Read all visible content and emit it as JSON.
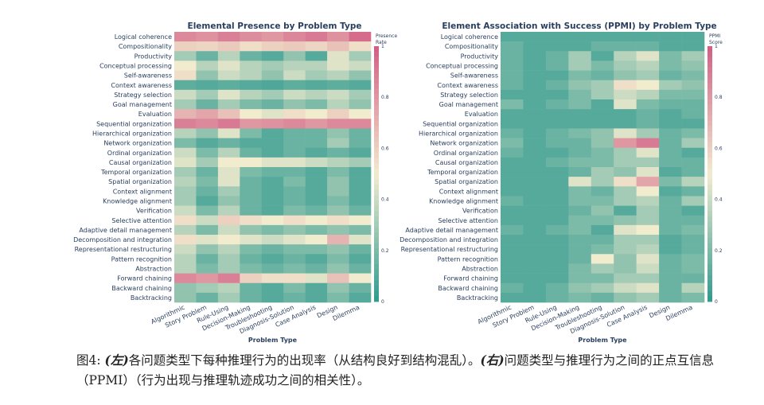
{
  "chart_data": [
    {
      "type": "heatmap",
      "title": "Elemental Presence by Problem Type",
      "xlabel": "Problem Type",
      "ylabel": "",
      "colorbar": {
        "label_line1": "Presence",
        "label_line2": "Rate",
        "range": [
          0,
          1
        ],
        "ticks": [
          "0",
          "0.2",
          "0.4",
          "0.6",
          "0.8",
          "1"
        ]
      },
      "colors": {
        "low": "#2f9a8f",
        "mid": "#f2eccf",
        "high": "#d25e84"
      },
      "x": [
        "Algorithmic",
        "Story Problem",
        "Rule-Using",
        "Decision-Making",
        "Troubleshooting",
        "Diagnosis-Solution",
        "Case Analysis",
        "Design",
        "Dilemma"
      ],
      "y": [
        "Logical coherence",
        "Compositionality",
        "Productivity",
        "Conceptual processing",
        "Self-awareness",
        "Context awareness",
        "Strategy selection",
        "Goal management",
        "Evaluation",
        "Sequential organization",
        "Hierarchical organization",
        "Network organization",
        "Ordinal organization",
        "Causal organization",
        "Temporal organization",
        "Spatial organization",
        "Context alignment",
        "Knowledge alignment",
        "Verification",
        "Selective attention",
        "Adaptive detail management",
        "Decomposition and integration",
        "Representational restructuring",
        "Pattern recognition",
        "Abstraction",
        "Forward chaining",
        "Backward chaining",
        "Backtracking"
      ],
      "values": [
        [
          0.85,
          0.82,
          0.88,
          0.83,
          0.8,
          0.86,
          0.9,
          0.82,
          0.95
        ],
        [
          0.6,
          0.58,
          0.62,
          0.55,
          0.6,
          0.62,
          0.58,
          0.65,
          0.55
        ],
        [
          0.3,
          0.15,
          0.35,
          0.15,
          0.1,
          0.25,
          0.1,
          0.45,
          0.3
        ],
        [
          0.5,
          0.35,
          0.45,
          0.35,
          0.3,
          0.35,
          0.35,
          0.45,
          0.4
        ],
        [
          0.55,
          0.25,
          0.4,
          0.35,
          0.25,
          0.4,
          0.3,
          0.35,
          0.25
        ],
        [
          0.12,
          0.1,
          0.12,
          0.1,
          0.08,
          0.12,
          0.1,
          0.12,
          0.1
        ],
        [
          0.4,
          0.3,
          0.45,
          0.35,
          0.3,
          0.4,
          0.35,
          0.4,
          0.3
        ],
        [
          0.3,
          0.15,
          0.3,
          0.2,
          0.15,
          0.25,
          0.2,
          0.35,
          0.25
        ],
        [
          0.7,
          0.75,
          0.65,
          0.5,
          0.45,
          0.55,
          0.5,
          0.6,
          0.5
        ],
        [
          0.88,
          0.85,
          0.9,
          0.8,
          0.82,
          0.85,
          0.8,
          0.85,
          0.85
        ],
        [
          0.35,
          0.25,
          0.45,
          0.2,
          0.1,
          0.15,
          0.15,
          0.25,
          0.15
        ],
        [
          0.2,
          0.1,
          0.15,
          0.1,
          0.1,
          0.15,
          0.15,
          0.3,
          0.15
        ],
        [
          0.4,
          0.2,
          0.35,
          0.15,
          0.1,
          0.15,
          0.1,
          0.15,
          0.1
        ],
        [
          0.45,
          0.3,
          0.5,
          0.5,
          0.45,
          0.45,
          0.4,
          0.35,
          0.3
        ],
        [
          0.3,
          0.15,
          0.45,
          0.2,
          0.15,
          0.15,
          0.1,
          0.2,
          0.1
        ],
        [
          0.35,
          0.2,
          0.45,
          0.15,
          0.1,
          0.2,
          0.1,
          0.25,
          0.1
        ],
        [
          0.3,
          0.15,
          0.3,
          0.15,
          0.1,
          0.15,
          0.1,
          0.25,
          0.1
        ],
        [
          0.3,
          0.1,
          0.25,
          0.15,
          0.1,
          0.15,
          0.1,
          0.2,
          0.1
        ],
        [
          0.4,
          0.2,
          0.35,
          0.15,
          0.1,
          0.2,
          0.15,
          0.25,
          0.15
        ],
        [
          0.55,
          0.4,
          0.6,
          0.55,
          0.5,
          0.55,
          0.5,
          0.55,
          0.5
        ],
        [
          0.35,
          0.2,
          0.4,
          0.25,
          0.2,
          0.25,
          0.2,
          0.25,
          0.2
        ],
        [
          0.55,
          0.45,
          0.5,
          0.45,
          0.4,
          0.45,
          0.5,
          0.7,
          0.45
        ],
        [
          0.4,
          0.25,
          0.35,
          0.2,
          0.15,
          0.2,
          0.2,
          0.25,
          0.15
        ],
        [
          0.35,
          0.15,
          0.3,
          0.15,
          0.1,
          0.15,
          0.1,
          0.2,
          0.1
        ],
        [
          0.35,
          0.2,
          0.3,
          0.2,
          0.15,
          0.2,
          0.15,
          0.25,
          0.15
        ],
        [
          0.85,
          0.8,
          0.88,
          0.6,
          0.55,
          0.55,
          0.45,
          0.65,
          0.5
        ],
        [
          0.25,
          0.3,
          0.35,
          0.15,
          0.1,
          0.2,
          0.1,
          0.25,
          0.15
        ],
        [
          0.25,
          0.15,
          0.3,
          0.15,
          0.1,
          0.15,
          0.1,
          0.2,
          0.1
        ]
      ]
    },
    {
      "type": "heatmap",
      "title": "Element Association with Success (PPMI) by Problem Type",
      "xlabel": "Problem Type",
      "ylabel": "",
      "colorbar": {
        "label_line1": "PPMI",
        "label_line2": "Score",
        "range": [
          0,
          1
        ],
        "ticks": [
          "0",
          "0.2",
          "0.4",
          "0.6",
          "0.8",
          "1"
        ]
      },
      "colors": {
        "low": "#2f9a8f",
        "mid": "#f2eccf",
        "high": "#d25e84"
      },
      "x": [
        "Algorithmic",
        "Story Problem",
        "Rule-Using",
        "Decision-Making",
        "Troubleshooting",
        "Diagnosis-Solution",
        "Case Analysis",
        "Design",
        "Dilemma"
      ],
      "y": [
        "Logical coherence",
        "Compositionality",
        "Productivity",
        "Conceptual processing",
        "Self-awareness",
        "Context awareness",
        "Strategy selection",
        "Goal management",
        "Evaluation",
        "Sequential organization",
        "Hierarchical organization",
        "Network organization",
        "Ordinal organization",
        "Causal organization",
        "Temporal organization",
        "Spatial organization",
        "Context alignment",
        "Knowledge alignment",
        "Verification",
        "Selective attention",
        "Adaptive detail management",
        "Decomposition and integration",
        "Representational restructuring",
        "Pattern recognition",
        "Abstraction",
        "Forward chaining",
        "Backward chaining",
        "Backtracking"
      ],
      "values": [
        [
          0.1,
          0.1,
          0.1,
          0.1,
          0.1,
          0.1,
          0.1,
          0.1,
          0.1
        ],
        [
          0.15,
          0.1,
          0.1,
          0.1,
          0.15,
          0.15,
          0.15,
          0.1,
          0.1
        ],
        [
          0.15,
          0.1,
          0.15,
          0.3,
          0.1,
          0.35,
          0.45,
          0.2,
          0.3
        ],
        [
          0.15,
          0.1,
          0.15,
          0.3,
          0.2,
          0.3,
          0.35,
          0.2,
          0.25
        ],
        [
          0.15,
          0.1,
          0.1,
          0.2,
          0.15,
          0.25,
          0.3,
          0.15,
          0.2
        ],
        [
          0.15,
          0.1,
          0.15,
          0.25,
          0.3,
          0.55,
          0.5,
          0.3,
          0.25
        ],
        [
          0.1,
          0.1,
          0.1,
          0.2,
          0.3,
          0.4,
          0.35,
          0.2,
          0.2
        ],
        [
          0.2,
          0.1,
          0.15,
          0.2,
          0.1,
          0.45,
          0.2,
          0.15,
          0.15
        ],
        [
          0.1,
          0.1,
          0.1,
          0.1,
          0.1,
          0.1,
          0.15,
          0.1,
          0.15
        ],
        [
          0.1,
          0.1,
          0.1,
          0.1,
          0.1,
          0.1,
          0.15,
          0.1,
          0.1
        ],
        [
          0.15,
          0.1,
          0.15,
          0.2,
          0.25,
          0.45,
          0.3,
          0.15,
          0.2
        ],
        [
          0.2,
          0.1,
          0.15,
          0.15,
          0.25,
          0.8,
          0.9,
          0.15,
          0.3
        ],
        [
          0.15,
          0.1,
          0.1,
          0.15,
          0.2,
          0.3,
          0.45,
          0.15,
          0.1
        ],
        [
          0.1,
          0.1,
          0.15,
          0.2,
          0.2,
          0.3,
          0.3,
          0.15,
          0.15
        ],
        [
          0.1,
          0.1,
          0.1,
          0.15,
          0.3,
          0.25,
          0.45,
          0.1,
          0.15
        ],
        [
          0.1,
          0.1,
          0.1,
          0.45,
          0.3,
          0.55,
          0.75,
          0.2,
          0.35
        ],
        [
          0.1,
          0.1,
          0.1,
          0.2,
          0.15,
          0.3,
          0.5,
          0.1,
          0.15
        ],
        [
          0.15,
          0.1,
          0.1,
          0.2,
          0.2,
          0.3,
          0.35,
          0.15,
          0.3
        ],
        [
          0.1,
          0.1,
          0.1,
          0.15,
          0.25,
          0.1,
          0.3,
          0.15,
          0.1
        ],
        [
          0.1,
          0.1,
          0.1,
          0.2,
          0.2,
          0.25,
          0.3,
          0.15,
          0.15
        ],
        [
          0.15,
          0.1,
          0.15,
          0.2,
          0.1,
          0.45,
          0.5,
          0.15,
          0.2
        ],
        [
          0.1,
          0.1,
          0.1,
          0.15,
          0.15,
          0.3,
          0.3,
          0.1,
          0.15
        ],
        [
          0.1,
          0.1,
          0.1,
          0.15,
          0.2,
          0.3,
          0.35,
          0.1,
          0.15
        ],
        [
          0.1,
          0.1,
          0.1,
          0.15,
          0.5,
          0.25,
          0.45,
          0.15,
          0.2
        ],
        [
          0.1,
          0.1,
          0.1,
          0.2,
          0.3,
          0.25,
          0.4,
          0.15,
          0.2
        ],
        [
          0.1,
          0.1,
          0.1,
          0.2,
          0.2,
          0.3,
          0.3,
          0.15,
          0.15
        ],
        [
          0.15,
          0.1,
          0.15,
          0.25,
          0.3,
          0.4,
          0.45,
          0.15,
          0.35
        ],
        [
          0.1,
          0.1,
          0.15,
          0.2,
          0.15,
          0.25,
          0.3,
          0.15,
          0.2
        ]
      ]
    }
  ],
  "caption": {
    "prefix": "图4: ",
    "left_tag": "(左)",
    "left_text": "各问题类型下每种推理行为的出现率（从结构良好到结构混乱）。",
    "right_tag": "(右)",
    "right_text": "问题类型与推理行为之间的正点互信息（PPMI）（行为出现与推理轨迹成功之间的相关性）。"
  }
}
